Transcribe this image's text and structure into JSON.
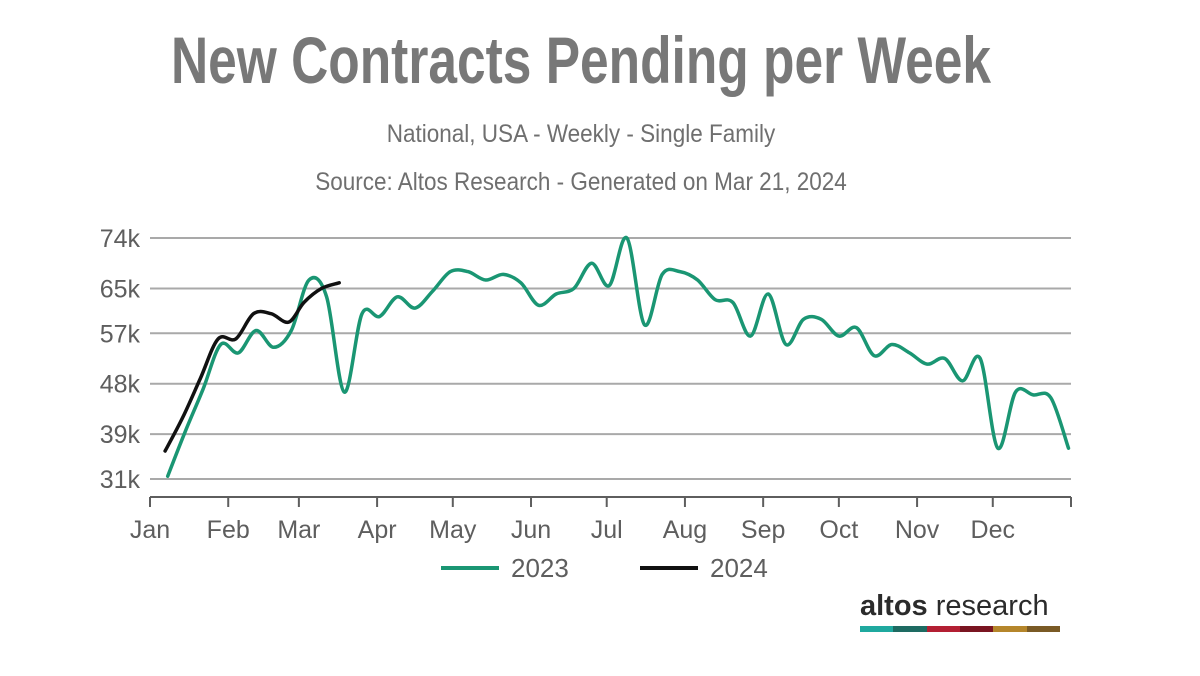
{
  "title": "New Contracts Pending per Week",
  "subtitle": "National, USA - Weekly - Single Family",
  "source": "Source: Altos Research - Generated on Mar 21, 2024",
  "logo": {
    "bold": "altos",
    "regular": " research",
    "stripe_colors": [
      "#1fa99f",
      "#1e6b62",
      "#b31f33",
      "#7a1521",
      "#b5862b",
      "#7a5a25"
    ]
  },
  "chart_data": {
    "type": "line",
    "title": "New Contracts Pending per Week",
    "subtitle": "National, USA - Weekly - Single Family",
    "xlabel": "",
    "ylabel": "",
    "x_tick_labels": [
      "Jan",
      "Feb",
      "Mar",
      "Apr",
      "May",
      "Jun",
      "Jul",
      "Aug",
      "Sep",
      "Oct",
      "Nov",
      "Dec"
    ],
    "y_tick_labels": [
      "31k",
      "39k",
      "48k",
      "57k",
      "65k",
      "74k"
    ],
    "y_ticks": [
      31000,
      39000,
      48000,
      57000,
      65000,
      74000
    ],
    "ylim": [
      31000,
      74000
    ],
    "grid": true,
    "legend_position": "bottom",
    "series": [
      {
        "name": "2023",
        "color": "#1a9673",
        "points": [
          {
            "x": "Jan 8",
            "y": 31500
          },
          {
            "x": "Jan 15",
            "y": 39500
          },
          {
            "x": "Jan 22",
            "y": 47000
          },
          {
            "x": "Jan 29",
            "y": 55000
          },
          {
            "x": "Feb 5",
            "y": 53500
          },
          {
            "x": "Feb 12",
            "y": 57500
          },
          {
            "x": "Feb 19",
            "y": 54500
          },
          {
            "x": "Feb 26",
            "y": 57500
          },
          {
            "x": "Mar 5",
            "y": 66500
          },
          {
            "x": "Mar 12",
            "y": 63500
          },
          {
            "x": "Mar 19",
            "y": 46500
          },
          {
            "x": "Mar 26",
            "y": 60500
          },
          {
            "x": "Apr 2",
            "y": 60000
          },
          {
            "x": "Apr 9",
            "y": 63500
          },
          {
            "x": "Apr 16",
            "y": 61500
          },
          {
            "x": "Apr 23",
            "y": 64500
          },
          {
            "x": "Apr 30",
            "y": 68000
          },
          {
            "x": "May 7",
            "y": 68000
          },
          {
            "x": "May 14",
            "y": 66500
          },
          {
            "x": "May 21",
            "y": 67500
          },
          {
            "x": "May 28",
            "y": 66000
          },
          {
            "x": "Jun 4",
            "y": 62000
          },
          {
            "x": "Jun 11",
            "y": 64000
          },
          {
            "x": "Jun 18",
            "y": 65000
          },
          {
            "x": "Jun 25",
            "y": 69500
          },
          {
            "x": "Jul 2",
            "y": 65500
          },
          {
            "x": "Jul 9",
            "y": 74000
          },
          {
            "x": "Jul 16",
            "y": 58500
          },
          {
            "x": "Jul 23",
            "y": 67500
          },
          {
            "x": "Jul 30",
            "y": 68000
          },
          {
            "x": "Aug 6",
            "y": 66500
          },
          {
            "x": "Aug 13",
            "y": 63000
          },
          {
            "x": "Aug 20",
            "y": 62500
          },
          {
            "x": "Aug 27",
            "y": 56500
          },
          {
            "x": "Sep 3",
            "y": 64000
          },
          {
            "x": "Sep 10",
            "y": 55000
          },
          {
            "x": "Sep 17",
            "y": 59500
          },
          {
            "x": "Sep 24",
            "y": 59500
          },
          {
            "x": "Oct 1",
            "y": 56500
          },
          {
            "x": "Oct 8",
            "y": 58000
          },
          {
            "x": "Oct 15",
            "y": 53000
          },
          {
            "x": "Oct 22",
            "y": 55000
          },
          {
            "x": "Oct 29",
            "y": 53500
          },
          {
            "x": "Nov 5",
            "y": 51500
          },
          {
            "x": "Nov 12",
            "y": 52500
          },
          {
            "x": "Nov 19",
            "y": 48500
          },
          {
            "x": "Nov 26",
            "y": 52500
          },
          {
            "x": "Dec 3",
            "y": 36500
          },
          {
            "x": "Dec 10",
            "y": 46500
          },
          {
            "x": "Dec 17",
            "y": 46000
          },
          {
            "x": "Dec 24",
            "y": 45500
          },
          {
            "x": "Dec 31",
            "y": 36500
          }
        ]
      },
      {
        "name": "2024",
        "color": "#111111",
        "points": [
          {
            "x": "Jan 7",
            "y": 36000
          },
          {
            "x": "Jan 14",
            "y": 42000
          },
          {
            "x": "Jan 21",
            "y": 49000
          },
          {
            "x": "Jan 28",
            "y": 56000
          },
          {
            "x": "Feb 4",
            "y": 56000
          },
          {
            "x": "Feb 11",
            "y": 60500
          },
          {
            "x": "Feb 18",
            "y": 60500
          },
          {
            "x": "Feb 25",
            "y": 59000
          },
          {
            "x": "Mar 3",
            "y": 62500
          },
          {
            "x": "Mar 10",
            "y": 65000
          },
          {
            "x": "Mar 17",
            "y": 66000
          }
        ]
      }
    ]
  }
}
